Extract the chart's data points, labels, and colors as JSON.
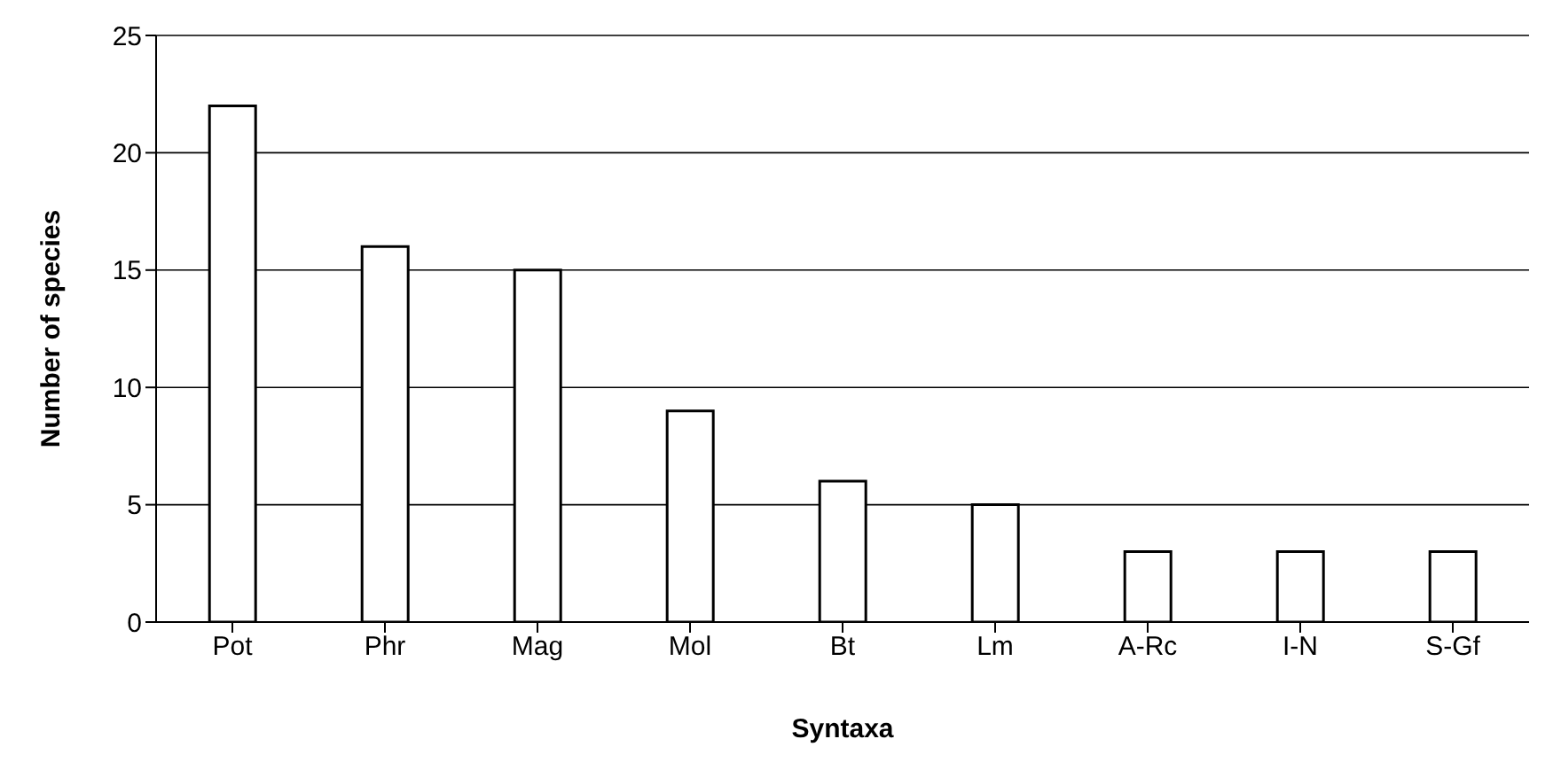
{
  "chart_data": {
    "type": "bar",
    "xlabel": "Syntaxa",
    "ylabel": "Number of species",
    "categories": [
      "Pot",
      "Phr",
      "Mag",
      "Mol",
      "Bt",
      "Lm",
      "A-Rc",
      "I-N",
      "S-Gf"
    ],
    "values": [
      22,
      16,
      15,
      9,
      6,
      5,
      3,
      3,
      3
    ],
    "color": "#ffffff",
    "ylim": [
      0,
      25
    ],
    "yticks": [
      0,
      5,
      10,
      15,
      20,
      25
    ],
    "grid": "y"
  }
}
